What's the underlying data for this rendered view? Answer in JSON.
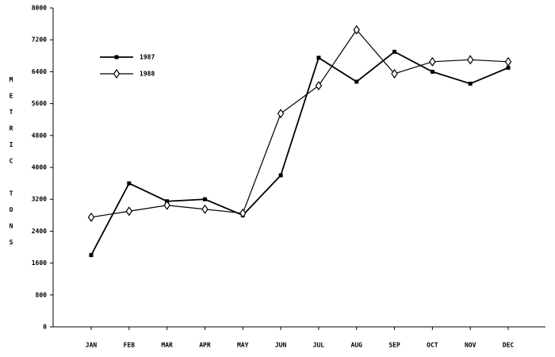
{
  "chart_data": {
    "type": "line",
    "y_label": "METRIC TONS",
    "categories": [
      "JAN",
      "FEB",
      "MAR",
      "APR",
      "MAY",
      "JUN",
      "JUL",
      "AUG",
      "SEP",
      "OCT",
      "NOV",
      "DEC"
    ],
    "series": [
      {
        "name": "1987",
        "color": "#000000",
        "marker": "square",
        "values": [
          1800,
          3600,
          3150,
          3200,
          2800,
          3800,
          6750,
          6150,
          6900,
          6400,
          6100,
          6500
        ]
      },
      {
        "name": "1988",
        "color": "#000000",
        "marker": "diamond",
        "values": [
          2750,
          2900,
          3050,
          2950,
          2850,
          5350,
          6050,
          7450,
          6350,
          6650,
          6700,
          6650
        ]
      }
    ],
    "ylim": [
      0,
      8000
    ],
    "yticks": [
      0,
      800,
      1600,
      2400,
      3200,
      4000,
      4800,
      5600,
      6400,
      7200,
      8000
    ],
    "legend": "upper-left"
  }
}
